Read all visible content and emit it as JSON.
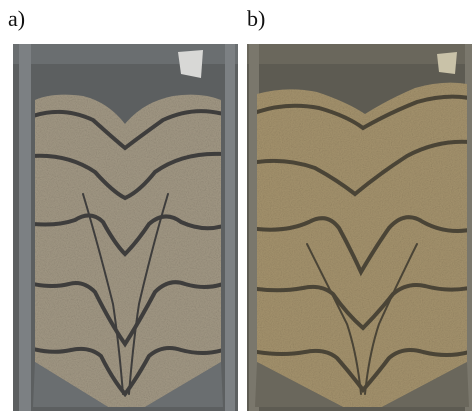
{
  "panels": [
    {
      "label": "a)",
      "id": "a",
      "sand_color": "#a49a86",
      "stripe_color": "#3e3d3c",
      "frame_color": "#5c5f60",
      "tint": "#b6aa8f"
    },
    {
      "label": "b)",
      "id": "b",
      "sand_color": "#a6946e",
      "stripe_color": "#4a4436",
      "frame_color": "#5d5b52",
      "tint": "#b4a274"
    }
  ]
}
